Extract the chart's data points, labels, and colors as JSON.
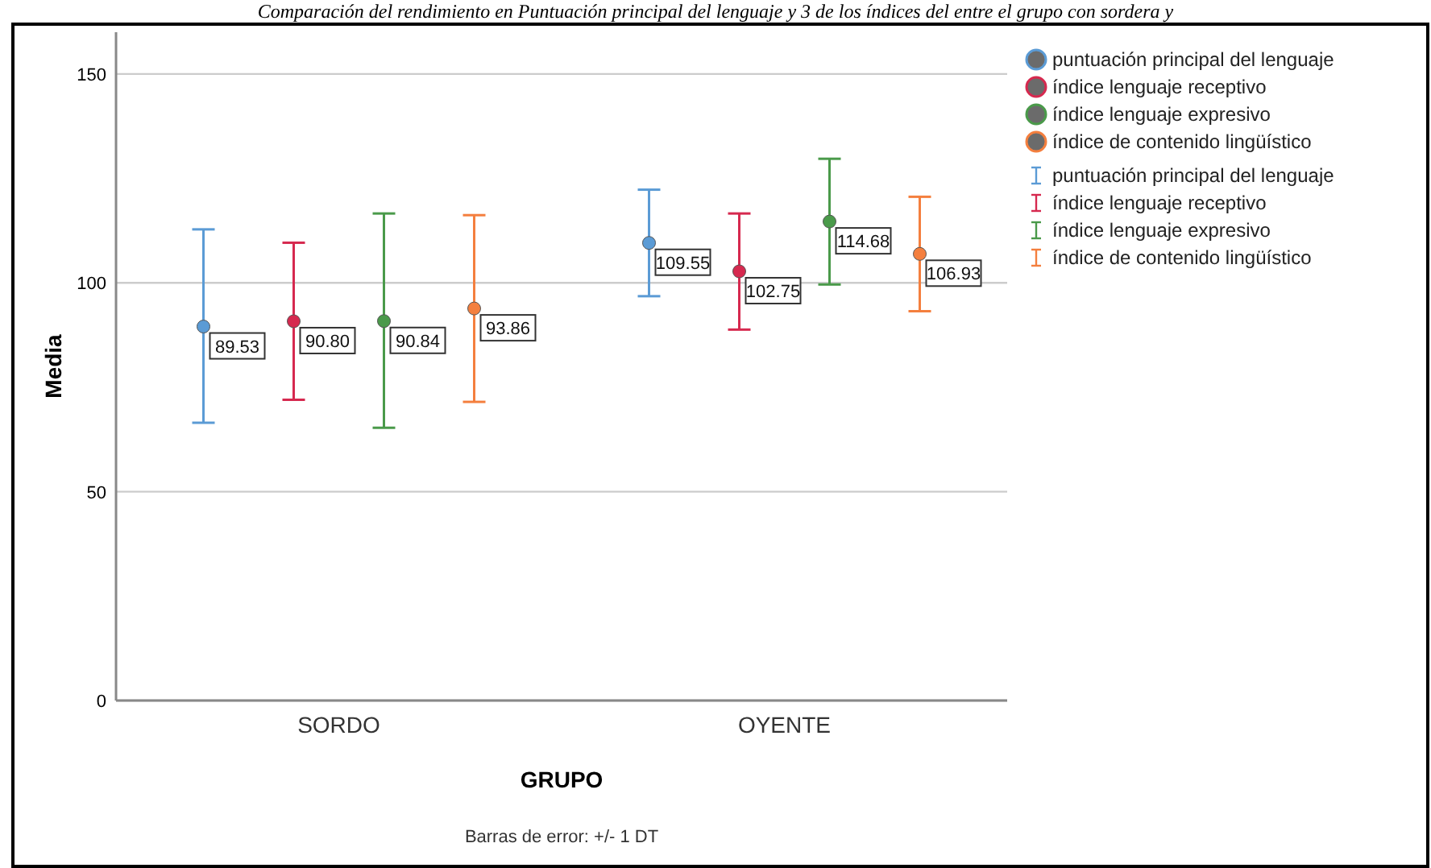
{
  "chart_data": {
    "type": "scatter",
    "title": "Comparación del rendimiento en Puntuación principal del lenguaje y 3 de los índices del entre el grupo con sordera y",
    "xlabel": "GRUPO",
    "ylabel": "Media",
    "categories": [
      "SORDO",
      "OYENTE"
    ],
    "series": [
      {
        "name": "puntuación principal del lenguaje",
        "color": "#5b9bd5",
        "values": [
          89.53,
          109.55
        ],
        "value_labels": [
          "89.53",
          "109.55"
        ],
        "errors": [
          [
            66.5,
            112.8
          ],
          [
            96.8,
            122.3
          ]
        ]
      },
      {
        "name": "índice lenguaje receptivo",
        "color": "#d6294f",
        "values": [
          90.8,
          102.75
        ],
        "value_labels": [
          "90.80",
          "102.75"
        ],
        "errors": [
          [
            72.0,
            109.6
          ],
          [
            88.8,
            116.6
          ]
        ]
      },
      {
        "name": "índice lenguaje expresivo",
        "color": "#4a9a4a",
        "values": [
          90.84,
          114.68
        ],
        "value_labels": [
          "90.84",
          "114.68"
        ],
        "errors": [
          [
            65.3,
            116.6
          ],
          [
            99.6,
            129.7
          ]
        ]
      },
      {
        "name": "índice de contenido lingüístico",
        "color": "#f47f3e",
        "values": [
          93.86,
          106.93
        ],
        "value_labels": [
          "93.86",
          "106.93"
        ],
        "errors": [
          [
            71.5,
            116.2
          ],
          [
            93.2,
            120.6
          ]
        ]
      }
    ],
    "ylim": [
      0,
      160
    ],
    "yticks": [
      0,
      50,
      100,
      150
    ],
    "grid": "y",
    "legend": "top right",
    "marker": "circle",
    "annotations": [
      "Barras de error: +/- 1 DT"
    ]
  }
}
